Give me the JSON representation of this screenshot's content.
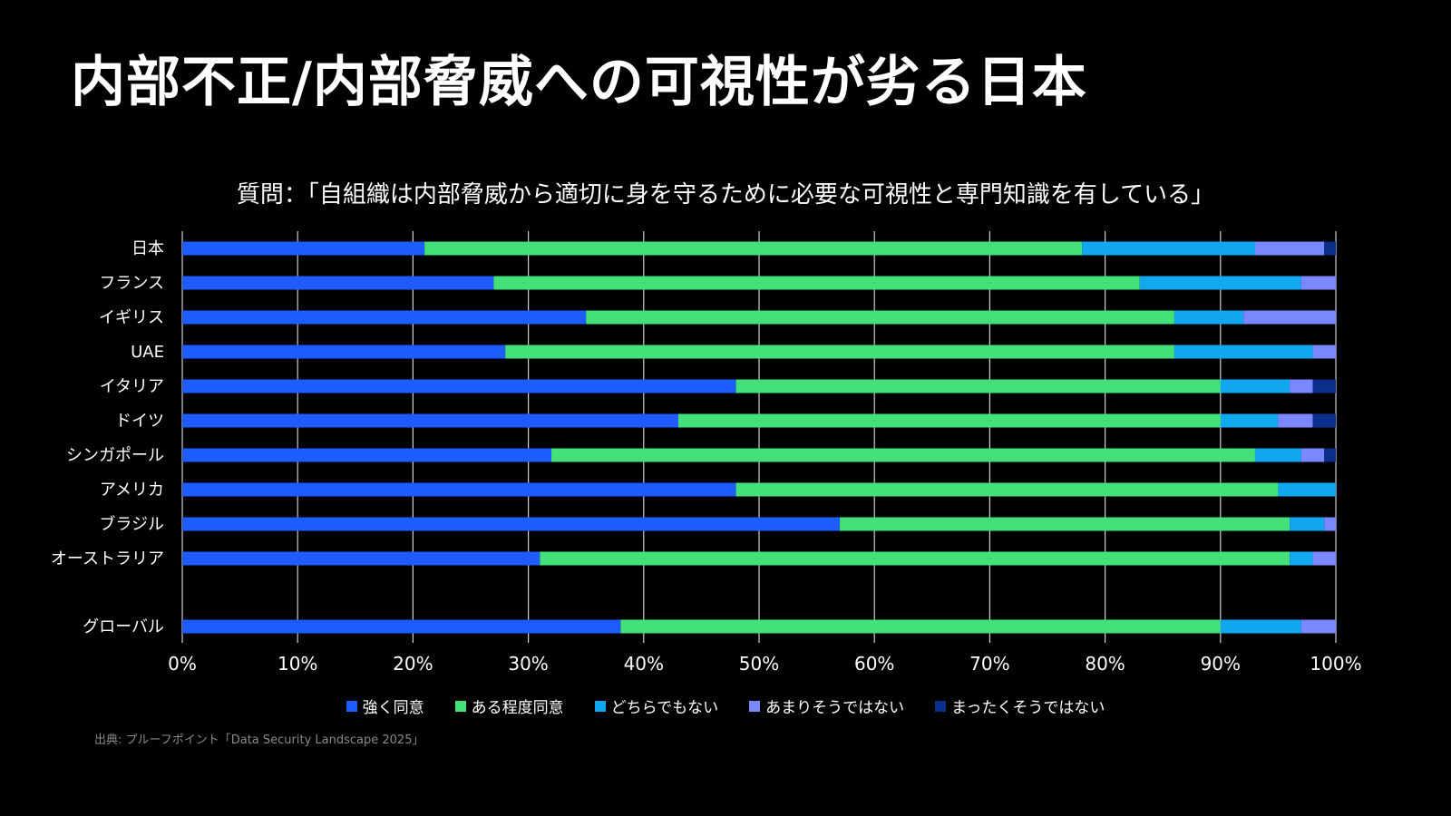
{
  "title": "内部不正/内部脅威への可視性が劣る日本",
  "subtitle": "質問：「自組織は内部脅威から適切に身を守るために必要な可視性と専門知識を有している」",
  "source": "出典: プルーフポイント「Data Security Landscape 2025」",
  "chart_data": {
    "type": "bar",
    "orientation": "horizontal",
    "stacked": true,
    "categories": [
      "日本",
      "フランス",
      "イギリス",
      "UAE",
      "イタリア",
      "ドイツ",
      "シンガポール",
      "アメリカ",
      "ブラジル",
      "オーストラリア",
      "グローバル"
    ],
    "xlim": [
      0,
      100
    ],
    "xticks": [
      "0%",
      "10%",
      "20%",
      "30%",
      "40%",
      "50%",
      "60%",
      "70%",
      "80%",
      "90%",
      "100%"
    ],
    "grid": true,
    "legend_position": "bottom",
    "series": [
      {
        "name": "強く同意",
        "color": "#1f5cff",
        "values": [
          21,
          27,
          35,
          28,
          48,
          43,
          32,
          48,
          57,
          31,
          38
        ]
      },
      {
        "name": "ある程度同意",
        "color": "#44e07a",
        "values": [
          57,
          56,
          51,
          58,
          42,
          47,
          61,
          47,
          39,
          65,
          52
        ]
      },
      {
        "name": "どちらでもない",
        "color": "#12a8f0",
        "values": [
          15,
          14,
          6,
          12,
          6,
          5,
          4,
          5,
          3,
          2,
          7
        ]
      },
      {
        "name": "あまりそうではない",
        "color": "#7b87ff",
        "values": [
          6,
          3,
          8,
          2,
          2,
          3,
          2,
          0,
          1,
          2,
          3
        ]
      },
      {
        "name": "まったくそうではない",
        "color": "#0c2f8c",
        "values": [
          1,
          0,
          0,
          0,
          2,
          2,
          1,
          0,
          0,
          0,
          0
        ]
      }
    ]
  }
}
